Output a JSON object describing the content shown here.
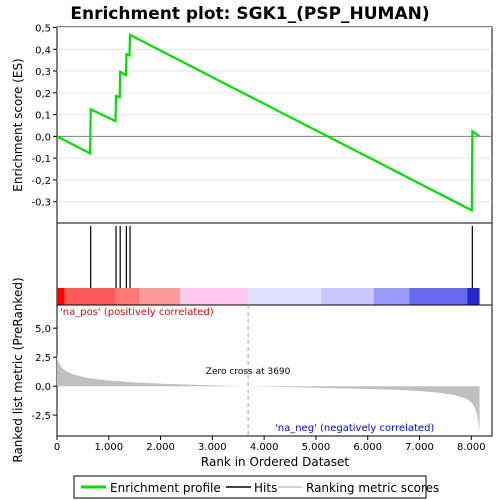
{
  "chart_data": {
    "title": "Enrichment plot: SGK1_(PSP_HUMAN)",
    "es_panel": {
      "type": "line",
      "ylabel": "Enrichment score (ES)",
      "ylim": [
        -0.4,
        0.5
      ],
      "yticks": [
        "0,5",
        "0,4",
        "0,3",
        "0,2",
        "0,1",
        "0,0",
        "-0,1",
        "-0,2",
        "-0,3"
      ],
      "ytick_values": [
        0.5,
        0.4,
        0.3,
        0.2,
        0.1,
        0.0,
        -0.1,
        -0.2,
        -0.3
      ],
      "grid": true,
      "line_color": "#00e000",
      "series": [
        {
          "x": [
            0,
            640,
            650,
            1130,
            1140,
            1210,
            1220,
            1330,
            1340,
            1400,
            1410,
            8010,
            8020,
            8160
          ],
          "y": [
            0.0,
            -0.078,
            0.124,
            0.07,
            0.186,
            0.18,
            0.296,
            0.282,
            0.378,
            0.372,
            0.466,
            -0.34,
            0.024,
            0.0
          ]
        }
      ]
    },
    "hits_panel": {
      "hit_positions": [
        650,
        1140,
        1220,
        1340,
        1410,
        8020
      ],
      "colorbar_segments": [
        {
          "x0": 0,
          "x1": 150,
          "color": "#ff0000"
        },
        {
          "x0": 150,
          "x1": 1130,
          "color": "#ff5a5a"
        },
        {
          "x0": 1130,
          "x1": 1600,
          "color": "#ff7676"
        },
        {
          "x0": 1600,
          "x1": 2380,
          "color": "#ff9a9a"
        },
        {
          "x0": 2380,
          "x1": 3690,
          "color": "#ffc8ee"
        },
        {
          "x0": 3690,
          "x1": 5100,
          "color": "#e0e0ff"
        },
        {
          "x0": 5100,
          "x1": 6120,
          "color": "#c8c8ff"
        },
        {
          "x0": 6120,
          "x1": 6800,
          "color": "#9a9aff"
        },
        {
          "x0": 6800,
          "x1": 7920,
          "color": "#6a6af0"
        },
        {
          "x0": 7920,
          "x1": 8160,
          "color": "#2828c8"
        }
      ]
    },
    "metric_panel": {
      "type": "area",
      "ylabel": "Ranked list metric (PreRanked)",
      "ylim": [
        -4.3,
        7.0
      ],
      "yticks": [
        "5,0",
        "2,5",
        "0,0",
        "-2,5"
      ],
      "ytick_values": [
        5.0,
        2.5,
        0.0,
        -2.5
      ],
      "fill_color": "#c0c0c0",
      "x": [
        0,
        20,
        60,
        120,
        200,
        300,
        450,
        600,
        800,
        1000,
        1300,
        1600,
        2000,
        2400,
        2800,
        3200,
        3690,
        4200,
        4800,
        5400,
        6000,
        6600,
        7000,
        7400,
        7700,
        7900,
        8000,
        8060,
        8110,
        8140,
        8160
      ],
      "y": [
        2.8,
        2.2,
        1.8,
        1.5,
        1.25,
        1.05,
        0.85,
        0.7,
        0.58,
        0.48,
        0.38,
        0.3,
        0.22,
        0.15,
        0.1,
        0.05,
        0.0,
        -0.06,
        -0.12,
        -0.18,
        -0.25,
        -0.33,
        -0.42,
        -0.58,
        -0.8,
        -1.1,
        -1.4,
        -1.8,
        -2.4,
        -3.2,
        -4.0
      ],
      "zero_cross_label": "Zero cross at 3690",
      "zero_cross_x": 3690,
      "pos_label": "'na_pos' (positively correlated)",
      "neg_label": "'na_neg' (negatively correlated)",
      "pos_color": "#ff0000",
      "neg_color": "#0000ff"
    },
    "xaxis": {
      "xlabel": "Rank in Ordered Dataset",
      "xlim": [
        0,
        8400
      ],
      "xticks": [
        "0",
        "1.000",
        "2.000",
        "3.000",
        "4.000",
        "5.000",
        "6.000",
        "7.000",
        "8.000"
      ],
      "xtick_values": [
        0,
        1000,
        2000,
        3000,
        4000,
        5000,
        6000,
        7000,
        8000
      ]
    },
    "legend": {
      "placement": "bottom",
      "items": [
        {
          "label": "Enrichment profile",
          "color": "#00e000",
          "kind": "thick-line"
        },
        {
          "label": "Hits",
          "color": "#000000",
          "kind": "line"
        },
        {
          "label": "Ranking metric scores",
          "color": "#c0c0c0",
          "kind": "line"
        }
      ]
    }
  }
}
